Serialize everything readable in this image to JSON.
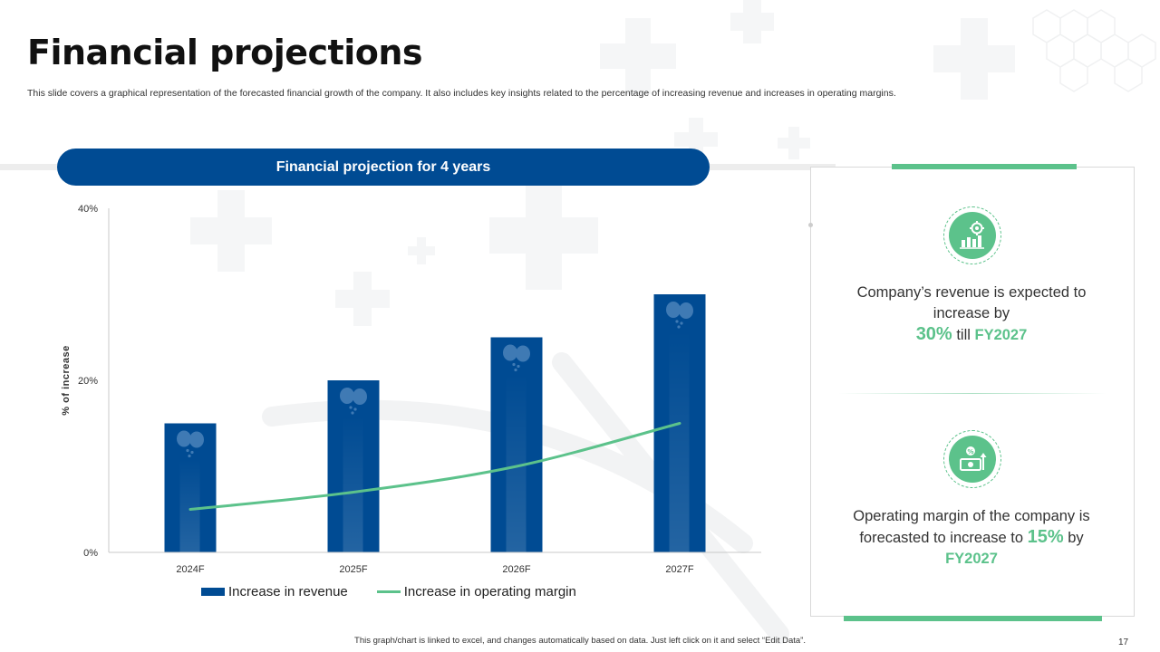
{
  "slide": {
    "title": "Financial projections",
    "subtitle": "This slide covers a graphical representation of the forecasted financial growth of the company. It also includes key insights related to the percentage of increasing revenue and increases in operating margins.",
    "footnote": "This graph/chart is linked to excel, and changes automatically based on data. Just left click on it and select “Edit Data”.",
    "page_number": "17"
  },
  "colors": {
    "accent_blue": "#004b93",
    "accent_green": "#5cc28b",
    "text": "#333333"
  },
  "chart_header": "Financial projection for 4 years",
  "chart_data": {
    "type": "bar",
    "title": "Financial projection for 4 years",
    "categories": [
      "2024F",
      "2025F",
      "2026F",
      "2027F"
    ],
    "series": [
      {
        "name": "Increase in revenue",
        "type": "bar",
        "values": [
          15,
          20,
          25,
          30
        ]
      },
      {
        "name": "Increase in operating margin",
        "type": "line",
        "values": [
          5,
          7,
          10,
          15
        ]
      }
    ],
    "ylabel": "% of increase",
    "xlabel": "",
    "ylim": [
      0,
      40
    ],
    "yticks": [
      0,
      20,
      40
    ],
    "ytick_labels": [
      "0%",
      "20%",
      "40%"
    ],
    "legend_position": "bottom"
  },
  "insights": [
    {
      "icon": "revenue-growth-icon",
      "before": "Company’s revenue is expected to increase by",
      "value": "30%",
      "middle": "till",
      "year": "FY2027"
    },
    {
      "icon": "operating-margin-icon",
      "before": "Operating margin of the company is forecasted to increase to",
      "value": "15%",
      "middle": "by",
      "year": "FY2027"
    }
  ]
}
